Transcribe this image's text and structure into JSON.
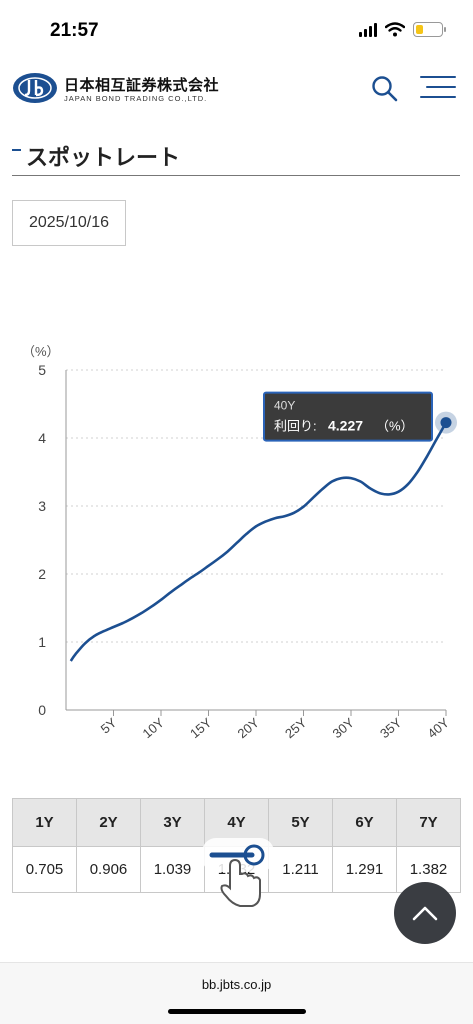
{
  "status": {
    "time": "21:57"
  },
  "header": {
    "brand_jp": "日本相互証券株式会社",
    "brand_en": "JAPAN BOND TRADING CO.,LTD."
  },
  "page": {
    "title": "スポットレート",
    "date": "2025/10/16"
  },
  "chart_data": {
    "type": "line",
    "ylabel": "（%）",
    "ylim": [
      0,
      5
    ],
    "yticks": [
      "0",
      "1",
      "2",
      "3",
      "4",
      "5"
    ],
    "xlim": [
      0,
      40
    ],
    "xticks": [
      "5Y",
      "10Y",
      "15Y",
      "20Y",
      "25Y",
      "30Y",
      "35Y",
      "40Y"
    ],
    "grid": "horizontal-dashed",
    "series": [
      {
        "x": [
          0.5,
          1,
          2,
          3,
          4,
          5,
          6,
          7,
          8,
          9,
          10,
          11,
          12,
          13,
          14,
          15,
          16,
          17,
          18,
          19,
          20,
          21,
          22,
          23,
          24,
          25,
          26,
          27,
          28,
          29,
          30,
          31,
          32,
          33,
          34,
          35,
          36,
          37,
          38,
          39,
          40
        ],
        "values": [
          0.72,
          0.82,
          0.98,
          1.09,
          1.16,
          1.22,
          1.28,
          1.35,
          1.43,
          1.52,
          1.62,
          1.73,
          1.83,
          1.93,
          2.02,
          2.12,
          2.22,
          2.33,
          2.46,
          2.59,
          2.7,
          2.77,
          2.82,
          2.85,
          2.9,
          2.99,
          3.12,
          3.25,
          3.36,
          3.41,
          3.41,
          3.36,
          3.26,
          3.19,
          3.17,
          3.21,
          3.32,
          3.5,
          3.73,
          3.98,
          4.227
        ]
      }
    ],
    "tooltip": {
      "title": "40Y",
      "label": "利回り:",
      "value": "4.227",
      "unit": "（%）",
      "x": 40,
      "y": 4.227
    }
  },
  "table": {
    "headers": [
      "1Y",
      "2Y",
      "3Y",
      "4Y",
      "5Y",
      "6Y",
      "7Y"
    ],
    "values": [
      "0.705",
      "0.906",
      "1.039",
      "1.132",
      "1.211",
      "1.291",
      "1.382"
    ]
  },
  "footer": {
    "url": "bb.jbts.co.jp"
  },
  "colors": {
    "brand": "#1c4f91",
    "line": "#1c4f91",
    "tooltip_bg": "#3b3b3b"
  }
}
